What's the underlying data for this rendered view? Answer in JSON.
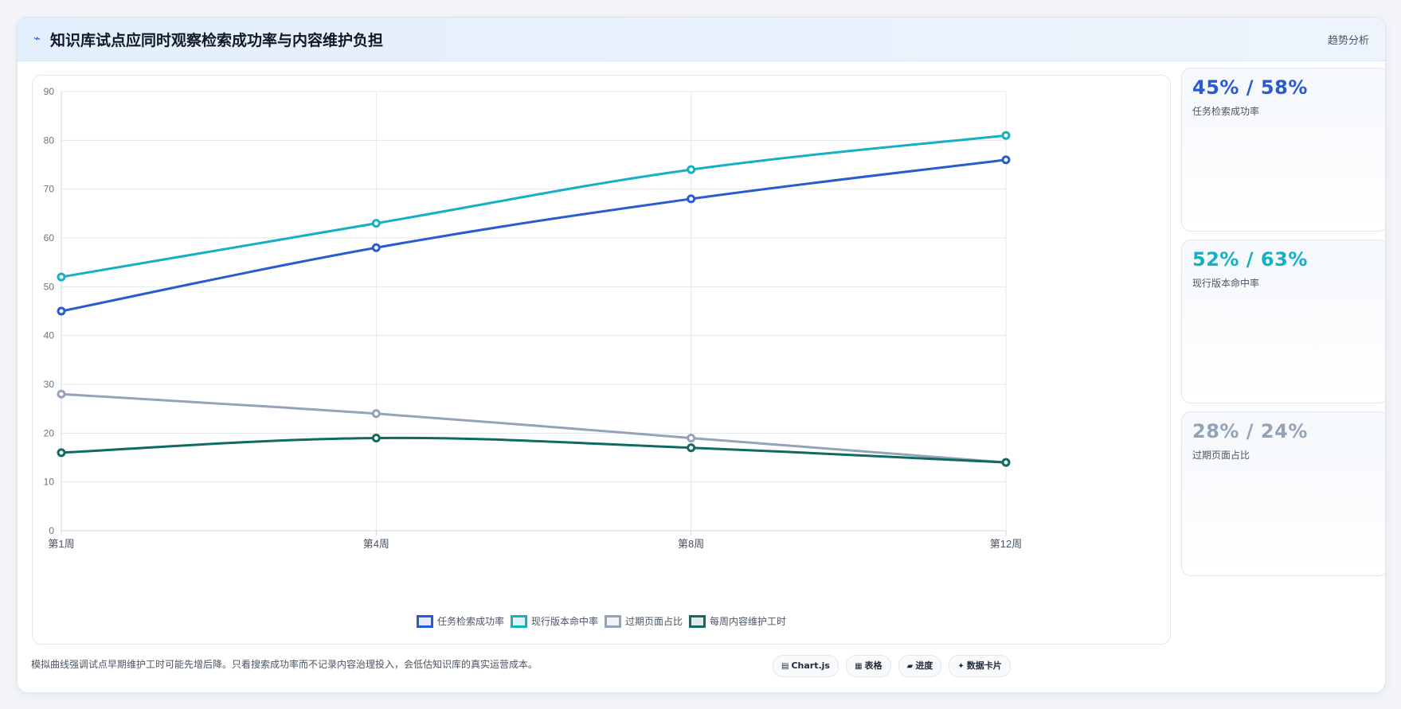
{
  "header": {
    "icon": "trend-icon",
    "title": "知识库试点应同时观察检索成功率与内容维护负担",
    "tag": "趋势分析"
  },
  "chart_data": {
    "type": "line",
    "categories": [
      "第1周",
      "第4周",
      "第8周",
      "第12周"
    ],
    "ylim": [
      0,
      90
    ],
    "yticks": [
      0,
      10,
      20,
      30,
      40,
      50,
      60,
      70,
      80,
      90
    ],
    "grid": true,
    "legend_position": "bottom",
    "series": [
      {
        "name": "任务检索成功率",
        "color": "#2a5bd0",
        "values": [
          45,
          58,
          68,
          76
        ]
      },
      {
        "name": "现行版本命中率",
        "color": "#14b0c4",
        "values": [
          52,
          63,
          74,
          81
        ]
      },
      {
        "name": "过期页面占比",
        "color": "#94a3b8",
        "values": [
          28,
          24,
          19,
          14
        ]
      },
      {
        "name": "每周内容维护工时",
        "color": "#0f6b5f",
        "values": [
          16,
          19,
          17,
          14
        ]
      }
    ]
  },
  "kpis": [
    {
      "value": "45% / 58%",
      "label": "任务检索成功率",
      "color": "#2a5bd0"
    },
    {
      "value": "52% / 63%",
      "label": "现行版本命中率",
      "color": "#14b0c4"
    },
    {
      "value": "28% / 24%",
      "label": "过期页面占比",
      "color": "#94a3b8"
    }
  ],
  "footnote": "模拟曲线强调试点早期维护工时可能先增后降。只看搜索成功率而不记录内容治理投入，会低估知识库的真实运营成本。",
  "chips": [
    {
      "icon": "chart-icon",
      "glyph": "▤",
      "label": "Chart.js"
    },
    {
      "icon": "table-icon",
      "glyph": "▦",
      "label": "表格"
    },
    {
      "icon": "progress-icon",
      "glyph": "▰",
      "label": "进度"
    },
    {
      "icon": "sparkle-icon",
      "glyph": "✦",
      "label": "数据卡片"
    }
  ]
}
